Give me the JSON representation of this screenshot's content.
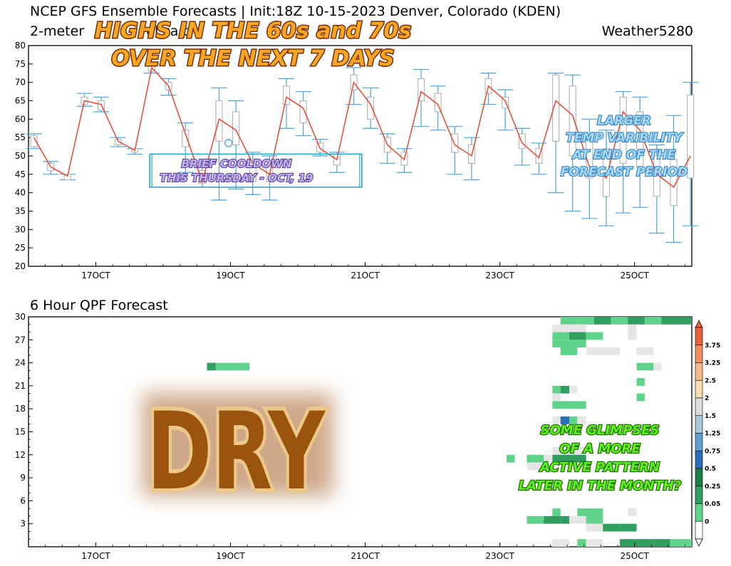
{
  "header": {
    "line1": "NCEP GFS Ensemble Forecasts | Init:18Z 10-15-2023 Denver, Colorado (KDEN)",
    "line2_left": "2-meter",
    "line2_left_partial": "ul         ca   t",
    "brand": "Weather5280"
  },
  "x_axis": {
    "ticks": [
      {
        "day": 17,
        "label": "17OCT"
      },
      {
        "day": 19,
        "label": "19OCT"
      },
      {
        "day": 21,
        "label": "21OCT"
      },
      {
        "day": 23,
        "label": "23OCT"
      },
      {
        "day": 25,
        "label": "25OCT"
      }
    ],
    "range": [
      16.0,
      25.85
    ]
  },
  "annotations": {
    "highs_line1": "HIGHS IN THE 60s and 70s",
    "highs_line2": "OVER THE NEXT 7 DAYS",
    "cooldown_line1": "BRIEF COOLDOWN",
    "cooldown_line2": "THIS THURSDAY - OCT, 19",
    "variability_line1": "LARGER",
    "variability_line2": "TEMP VARIBILITY",
    "variability_line3": "AT END OF THE",
    "variability_line4": "FORECAST PERIOD",
    "dry": "DRY",
    "active_line1": "SOME GLIMPSES",
    "active_line2": "OF A MORE",
    "active_line3": "ACTIVE PATTERN",
    "active_line4": "LATER IN THE MONTH?"
  },
  "colors": {
    "mean_line": "#e8513a",
    "whisker": "#4aa3dd",
    "box": "#b8b8b8",
    "qpf_light": "#e6e6e6",
    "qpf_green1": "#5fd38a",
    "qpf_green2": "#2f9e5e",
    "qpf_blue": "#2a6ebb"
  },
  "chart_data": [
    {
      "type": "box",
      "title": "2-meter temperature",
      "ylim": [
        20,
        80
      ],
      "yticks": [
        20,
        25,
        30,
        35,
        40,
        45,
        50,
        55,
        60,
        65,
        70,
        75,
        80
      ],
      "x_units": "days of October 2023 (fractional)",
      "points": [
        {
          "x": 16.08,
          "mean": 55,
          "q1": 52.5,
          "q3": 55.5,
          "min": 52,
          "max": 56
        },
        {
          "x": 16.33,
          "mean": 47,
          "q1": 46,
          "q3": 48,
          "min": 45,
          "max": 48.5
        },
        {
          "x": 16.58,
          "mean": 44.5,
          "q1": 43.5,
          "q3": 45,
          "min": 43.5,
          "max": 45
        },
        {
          "x": 16.83,
          "mean": 65,
          "q1": 64,
          "q3": 66,
          "min": 63.5,
          "max": 67
        },
        {
          "x": 17.08,
          "mean": 64,
          "q1": 62.5,
          "q3": 65,
          "min": 62,
          "max": 66
        },
        {
          "x": 17.33,
          "mean": 54,
          "q1": 53,
          "q3": 54.5,
          "min": 52.5,
          "max": 55
        },
        {
          "x": 17.58,
          "mean": 51.5,
          "q1": 51,
          "q3": 52,
          "min": 50.5,
          "max": 52
        },
        {
          "x": 17.83,
          "mean": 74,
          "q1": 73,
          "q3": 74.5,
          "min": 72.5,
          "max": 75
        },
        {
          "x": 18.08,
          "mean": 69,
          "q1": 68,
          "q3": 70,
          "min": 66.5,
          "max": 71
        },
        {
          "x": 18.33,
          "mean": 56,
          "q1": 52.5,
          "q3": 57,
          "min": 45.5,
          "max": 59
        },
        {
          "x": 18.58,
          "mean": 43,
          "q1": 42.5,
          "q3": 46,
          "min": 41.5,
          "max": 48
        },
        {
          "x": 18.83,
          "mean": 60,
          "q1": 54,
          "q3": 65,
          "min": 38,
          "max": 68.5
        },
        {
          "x": 19.08,
          "mean": 57,
          "q1": 53,
          "q3": 62,
          "min": 41,
          "max": 65
        },
        {
          "x": 19.33,
          "mean": 48,
          "q1": 43,
          "q3": 48,
          "min": 39.5,
          "max": 51
        },
        {
          "x": 19.58,
          "mean": 45,
          "q1": 43,
          "q3": 48,
          "min": 38,
          "max": 50
        },
        {
          "x": 19.83,
          "mean": 66,
          "q1": 64,
          "q3": 69,
          "min": 57.5,
          "max": 71
        },
        {
          "x": 20.08,
          "mean": 63,
          "q1": 59,
          "q3": 65,
          "min": 55.5,
          "max": 67.5
        },
        {
          "x": 20.33,
          "mean": 52,
          "q1": 51,
          "q3": 53.5,
          "min": 50,
          "max": 54.5
        },
        {
          "x": 20.58,
          "mean": 49,
          "q1": 47.5,
          "q3": 50.5,
          "min": 45.5,
          "max": 51
        },
        {
          "x": 20.83,
          "mean": 70,
          "q1": 68,
          "q3": 72,
          "min": 64,
          "max": 74
        },
        {
          "x": 21.08,
          "mean": 64,
          "q1": 60,
          "q3": 66,
          "min": 57.5,
          "max": 68.5
        },
        {
          "x": 21.33,
          "mean": 53,
          "q1": 51,
          "q3": 55,
          "min": 48,
          "max": 56
        },
        {
          "x": 21.58,
          "mean": 49,
          "q1": 47.5,
          "q3": 51,
          "min": 45.5,
          "max": 52
        },
        {
          "x": 21.83,
          "mean": 67.5,
          "q1": 65,
          "q3": 71,
          "min": 58,
          "max": 73.5
        },
        {
          "x": 22.08,
          "mean": 64,
          "q1": 62,
          "q3": 67,
          "min": 57,
          "max": 69
        },
        {
          "x": 22.33,
          "mean": 53,
          "q1": 51,
          "q3": 56,
          "min": 45,
          "max": 58
        },
        {
          "x": 22.58,
          "mean": 50,
          "q1": 48,
          "q3": 53,
          "min": 43.5,
          "max": 55
        },
        {
          "x": 22.83,
          "mean": 69,
          "q1": 67,
          "q3": 71,
          "min": 64,
          "max": 72.5
        },
        {
          "x": 23.08,
          "mean": 65,
          "q1": 63,
          "q3": 66,
          "min": 57,
          "max": 68
        },
        {
          "x": 23.33,
          "mean": 53.5,
          "q1": 52,
          "q3": 56,
          "min": 47.5,
          "max": 57.5
        },
        {
          "x": 23.58,
          "mean": 49.5,
          "q1": 48,
          "q3": 52,
          "min": 45,
          "max": 53.5
        },
        {
          "x": 23.83,
          "mean": 65,
          "q1": 54,
          "q3": 72,
          "min": 40,
          "max": 72.5
        },
        {
          "x": 24.08,
          "mean": 61,
          "q1": 50,
          "q3": 69,
          "min": 35,
          "max": 72
        },
        {
          "x": 24.33,
          "mean": 47,
          "q1": 44,
          "q3": 56,
          "min": 33,
          "max": 60
        },
        {
          "x": 24.58,
          "mean": 44,
          "q1": 39,
          "q3": 52,
          "min": 31,
          "max": 57
        },
        {
          "x": 24.83,
          "mean": 62,
          "q1": 48,
          "q3": 66,
          "min": 34.5,
          "max": 67.5
        },
        {
          "x": 25.08,
          "mean": 57,
          "q1": 47,
          "q3": 62,
          "min": 36,
          "max": 66
        },
        {
          "x": 25.33,
          "mean": 45,
          "q1": 39,
          "q3": 50,
          "min": 29,
          "max": 53
        },
        {
          "x": 25.58,
          "mean": 41.5,
          "q1": 36.5,
          "q3": 49,
          "min": 26.5,
          "max": 61
        },
        {
          "x": 25.83,
          "mean": 50,
          "q1": 44,
          "q3": 66.5,
          "min": 31,
          "max": 70
        }
      ],
      "highlight_point": {
        "x": 18.97,
        "y": 53.5
      },
      "cooldown_box": {
        "x0": 17.8,
        "x1": 20.95,
        "y0": 41.5,
        "y1": 50.5
      }
    },
    {
      "type": "heatmap",
      "title": "6 Hour QPF Forecast",
      "ylim": [
        0,
        30
      ],
      "yticks": [
        3,
        6,
        9,
        12,
        15,
        18,
        21,
        24,
        27,
        30
      ],
      "colorbar_labels": [
        "3.75",
        "3.25",
        "2.5",
        "2",
        "1.5",
        "1.25",
        "0.75",
        "0.5",
        "0.25",
        "0.05",
        "0"
      ],
      "colorbar_colors": [
        "#e8603a",
        "#f3905f",
        "#f7b98c",
        "#f5ddb0",
        "#dcdcdc",
        "#a6c8d8",
        "#5f9fd0",
        "#2a6ebb",
        "#1f7e46",
        "#2f9e5e",
        "#5fd38a",
        "#ffffff"
      ],
      "cells": [
        {
          "x0": 23.9,
          "x1": 24.15,
          "y": 30,
          "c": "#5fd38a"
        },
        {
          "x0": 24.15,
          "x1": 24.4,
          "y": 30,
          "c": "#5fd38a"
        },
        {
          "x0": 24.4,
          "x1": 24.65,
          "y": 30,
          "c": "#2f9e5e"
        },
        {
          "x0": 24.65,
          "x1": 24.9,
          "y": 30,
          "c": "#5fd38a"
        },
        {
          "x0": 24.9,
          "x1": 25.15,
          "y": 30,
          "c": "#2f9e5e"
        },
        {
          "x0": 25.15,
          "x1": 25.4,
          "y": 30,
          "c": "#5fd38a"
        },
        {
          "x0": 25.4,
          "x1": 25.65,
          "y": 30,
          "c": "#2f9e5e"
        },
        {
          "x0": 25.65,
          "x1": 25.85,
          "y": 30,
          "c": "#2f9e5e"
        },
        {
          "x0": 23.78,
          "x1": 24.03,
          "y": 29,
          "c": "#e6e6e6"
        },
        {
          "x0": 24.03,
          "x1": 24.28,
          "y": 29,
          "c": "#e6e6e6"
        },
        {
          "x0": 24.9,
          "x1": 25.03,
          "y": 29,
          "c": "#e6e6e6"
        },
        {
          "x0": 23.78,
          "x1": 24.03,
          "y": 28,
          "c": "#5fd38a"
        },
        {
          "x0": 24.03,
          "x1": 24.28,
          "y": 28,
          "c": "#2f9e5e"
        },
        {
          "x0": 24.28,
          "x1": 24.53,
          "y": 28,
          "c": "#5fd38a"
        },
        {
          "x0": 24.9,
          "x1": 25.03,
          "y": 28,
          "c": "#e6e6e6"
        },
        {
          "x0": 23.78,
          "x1": 24.03,
          "y": 27,
          "c": "#5fd38a"
        },
        {
          "x0": 24.03,
          "x1": 24.28,
          "y": 27,
          "c": "#5fd38a"
        },
        {
          "x0": 23.9,
          "x1": 24.15,
          "y": 26,
          "c": "#5fd38a"
        },
        {
          "x0": 24.28,
          "x1": 24.53,
          "y": 26,
          "c": "#e6e6e6"
        },
        {
          "x0": 24.53,
          "x1": 24.78,
          "y": 26,
          "c": "#e6e6e6"
        },
        {
          "x0": 25.03,
          "x1": 25.28,
          "y": 26,
          "c": "#e6e6e6"
        },
        {
          "x0": 18.65,
          "x1": 18.78,
          "y": 24,
          "c": "#2f9e5e"
        },
        {
          "x0": 18.78,
          "x1": 19.03,
          "y": 24,
          "c": "#5fd38a"
        },
        {
          "x0": 19.03,
          "x1": 19.28,
          "y": 24,
          "c": "#5fd38a"
        },
        {
          "x0": 25.03,
          "x1": 25.28,
          "y": 24,
          "c": "#5fd38a"
        },
        {
          "x0": 25.28,
          "x1": 25.4,
          "y": 24,
          "c": "#e6e6e6"
        },
        {
          "x0": 25.03,
          "x1": 25.15,
          "y": 22,
          "c": "#5fd38a"
        },
        {
          "x0": 23.78,
          "x1": 23.9,
          "y": 21,
          "c": "#5fd38a"
        },
        {
          "x0": 23.9,
          "x1": 24.03,
          "y": 21,
          "c": "#2f9e5e"
        },
        {
          "x0": 24.03,
          "x1": 24.15,
          "y": 21,
          "c": "#e6e6e6"
        },
        {
          "x0": 23.78,
          "x1": 23.9,
          "y": 20,
          "c": "#e6e6e6"
        },
        {
          "x0": 25.03,
          "x1": 25.15,
          "y": 20,
          "c": "#5fd38a"
        },
        {
          "x0": 23.78,
          "x1": 24.28,
          "y": 19,
          "c": "#5fd38a"
        },
        {
          "x0": 23.78,
          "x1": 23.9,
          "y": 17,
          "c": "#e6e6e6"
        },
        {
          "x0": 23.9,
          "x1": 24.03,
          "y": 17,
          "c": "#2a6ebb"
        },
        {
          "x0": 24.03,
          "x1": 24.15,
          "y": 17,
          "c": "#5fd38a"
        },
        {
          "x0": 24.15,
          "x1": 24.28,
          "y": 17,
          "c": "#e6e6e6"
        },
        {
          "x0": 24.28,
          "x1": 24.4,
          "y": 16,
          "c": "#e6e6e6"
        },
        {
          "x0": 23.78,
          "x1": 24.03,
          "y": 13,
          "c": "#e6e6e6"
        },
        {
          "x0": 24.03,
          "x1": 24.28,
          "y": 13,
          "c": "#e6e6e6"
        },
        {
          "x0": 23.1,
          "x1": 23.22,
          "y": 12,
          "c": "#5fd38a"
        },
        {
          "x0": 23.4,
          "x1": 23.65,
          "y": 12,
          "c": "#5fd38a"
        },
        {
          "x0": 23.65,
          "x1": 23.78,
          "y": 12,
          "c": "#e6e6e6"
        },
        {
          "x0": 23.78,
          "x1": 24.28,
          "y": 12,
          "c": "#2f9e5e"
        },
        {
          "x0": 23.4,
          "x1": 23.65,
          "y": 11,
          "c": "#e6e6e6"
        },
        {
          "x0": 23.78,
          "x1": 23.9,
          "y": 5,
          "c": "#5fd38a"
        },
        {
          "x0": 24.15,
          "x1": 24.53,
          "y": 5,
          "c": "#5fd38a"
        },
        {
          "x0": 23.4,
          "x1": 23.65,
          "y": 4,
          "c": "#5fd38a"
        },
        {
          "x0": 23.65,
          "x1": 23.9,
          "y": 4,
          "c": "#2f9e5e"
        },
        {
          "x0": 23.9,
          "x1": 24.03,
          "y": 4,
          "c": "#2f9e5e"
        },
        {
          "x0": 24.03,
          "x1": 24.28,
          "y": 4,
          "c": "#e6e6e6"
        },
        {
          "x0": 24.28,
          "x1": 24.53,
          "y": 4,
          "c": "#5fd38a"
        },
        {
          "x0": 24.9,
          "x1": 25.03,
          "y": 5,
          "c": "#e6e6e6"
        },
        {
          "x0": 24.28,
          "x1": 24.53,
          "y": 3,
          "c": "#e6e6e6"
        },
        {
          "x0": 24.53,
          "x1": 24.78,
          "y": 3,
          "c": "#2f9e5e"
        },
        {
          "x0": 24.78,
          "x1": 25.03,
          "y": 3,
          "c": "#2f9e5e"
        },
        {
          "x0": 23.78,
          "x1": 24.03,
          "y": 1,
          "c": "#e6e6e6"
        },
        {
          "x0": 24.15,
          "x1": 24.28,
          "y": 1,
          "c": "#5fd38a"
        },
        {
          "x0": 24.28,
          "x1": 24.53,
          "y": 1,
          "c": "#e6e6e6"
        },
        {
          "x0": 24.78,
          "x1": 25.03,
          "y": 1,
          "c": "#2f9e5e"
        },
        {
          "x0": 25.03,
          "x1": 25.28,
          "y": 1,
          "c": "#2f9e5e"
        },
        {
          "x0": 25.28,
          "x1": 25.53,
          "y": 1,
          "c": "#2f9e5e"
        },
        {
          "x0": 25.53,
          "x1": 25.85,
          "y": 1,
          "c": "#5fd38a"
        }
      ]
    }
  ]
}
